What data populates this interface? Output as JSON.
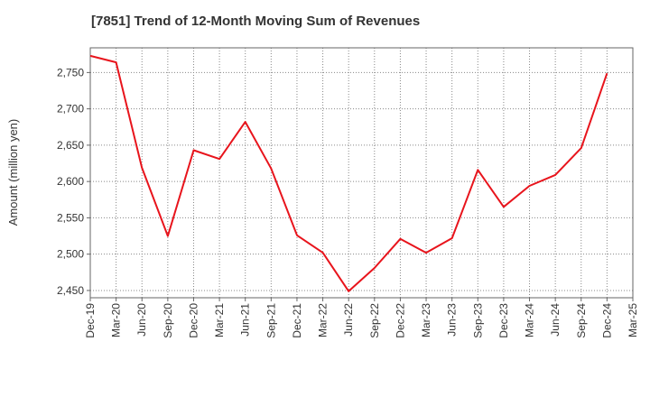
{
  "chart_data": {
    "type": "line",
    "title": "[7851]  Trend of 12-Month Moving Sum of Revenues",
    "xlabel": "",
    "ylabel": "Amount (million yen)",
    "ylim": [
      2440,
      2784
    ],
    "yticks": [
      2450,
      2500,
      2550,
      2600,
      2650,
      2700,
      2750
    ],
    "ytick_labels": [
      "2,450",
      "2,500",
      "2,550",
      "2,600",
      "2,650",
      "2,700",
      "2,750"
    ],
    "categories": [
      "Dec-19",
      "Mar-20",
      "Jun-20",
      "Sep-20",
      "Dec-20",
      "Mar-21",
      "Jun-21",
      "Sep-21",
      "Dec-21",
      "Mar-22",
      "Jun-22",
      "Sep-22",
      "Dec-22",
      "Mar-23",
      "Jun-23",
      "Sep-23",
      "Dec-23",
      "Mar-24",
      "Jun-24",
      "Sep-24",
      "Dec-24",
      "Mar-25"
    ],
    "series": [
      {
        "color": "#e8141c",
        "values": [
          2773,
          2764,
          2619,
          2525,
          2643,
          2631,
          2682,
          2618,
          2526,
          2502,
          2449,
          2481,
          2521,
          2502,
          2522,
          2616,
          2565,
          2594,
          2609,
          2646,
          2749,
          null
        ]
      }
    ],
    "grid": true,
    "legend": "none"
  }
}
